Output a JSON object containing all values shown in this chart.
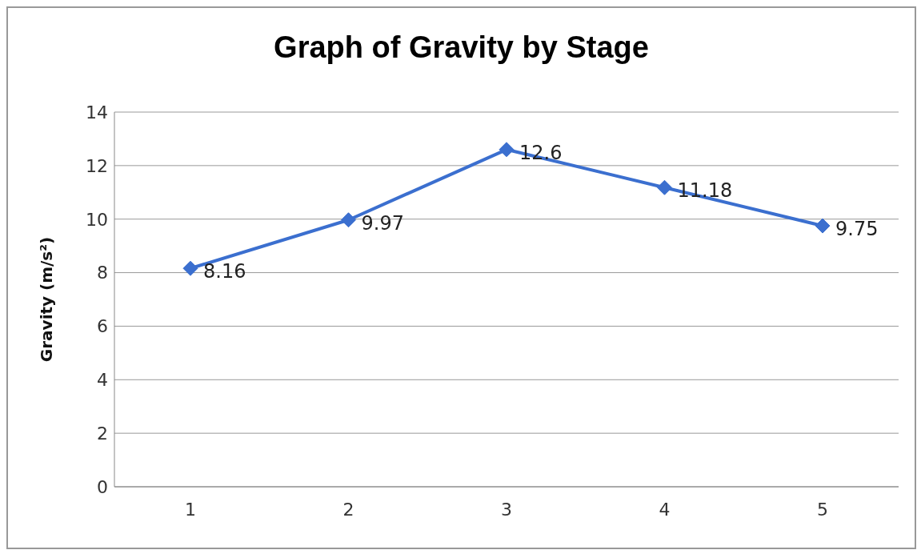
{
  "chart_data": {
    "type": "line",
    "title": "Graph of Gravity by Stage",
    "ylabel": "Gravity  (m/s²)",
    "categories": [
      "1",
      "2",
      "3",
      "4",
      "5"
    ],
    "series": [
      {
        "color": "#3b6fcf",
        "values": [
          8.16,
          9.97,
          12.6,
          11.18,
          9.75
        ]
      }
    ],
    "ylim": [
      0,
      14
    ],
    "yticks": [
      0,
      2,
      4,
      6,
      8,
      10,
      12,
      14
    ],
    "grid": "y",
    "marker": "diamond",
    "line_style": "solid",
    "data_labels": true,
    "legend": false
  }
}
